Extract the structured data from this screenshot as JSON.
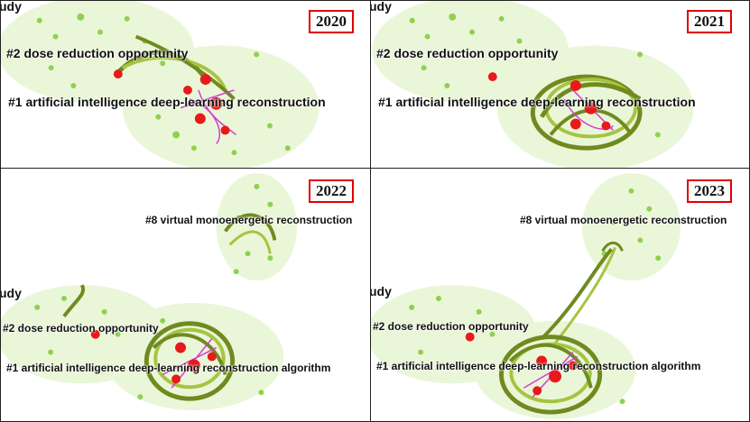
{
  "panels": [
    {
      "year": "2020",
      "clusters": {
        "dose": "#2 dose reduction opportunity",
        "ai": "#1 artificial intelligence deep-learning reconstruction",
        "cut": "udy"
      }
    },
    {
      "year": "2021",
      "clusters": {
        "dose": "#2 dose reduction opportunity",
        "ai": "#1 artificial intelligence deep-learning reconstruction",
        "cut": "udy"
      }
    },
    {
      "year": "2022",
      "clusters": {
        "vme": "#8 virtual monoenergetic reconstruction",
        "dose": "#2 dose reduction opportunity",
        "ai": "#1 artificial intelligence deep-learning reconstruction algorithm",
        "cut": "udy"
      }
    },
    {
      "year": "2023",
      "clusters": {
        "vme": "#8 virtual monoenergetic reconstruction",
        "dose": "#2 dose reduction opportunity",
        "ai": "#1 artificial intelligence deep-learning reconstruction algorithm",
        "cut": "udy"
      }
    }
  ],
  "colors": {
    "cluster_fill": "#eaf6d8",
    "node_green": "#8fd14f",
    "node_red": "#e8191b",
    "link_olive": "#6f8a1f",
    "link_magenta": "#d33ad3",
    "year_border": "#e00000"
  }
}
